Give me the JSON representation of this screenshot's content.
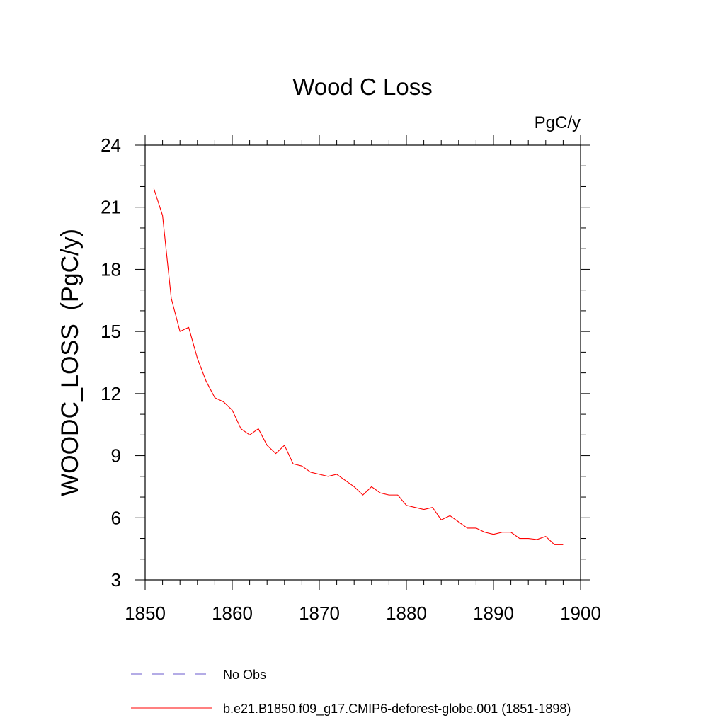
{
  "chart_data": {
    "type": "line",
    "title": "Wood C Loss",
    "units_label": "PgC/y",
    "ylabel": "WOODC_LOSS  (PgC/y)",
    "xlabel": "",
    "xlim": [
      1850,
      1900
    ],
    "ylim": [
      3,
      24
    ],
    "x_ticks": [
      1850,
      1860,
      1870,
      1880,
      1890,
      1900
    ],
    "y_ticks": [
      3,
      6,
      9,
      12,
      15,
      18,
      21,
      24
    ],
    "x_minor_step": 2,
    "y_minor_step": 1,
    "series": [
      {
        "name": "b.e21.B1850.f09_g17.CMIP6-deforest-globe.001 (1851-1898)",
        "color": "#ff0000",
        "dash": "solid",
        "x": [
          1851,
          1852,
          1853,
          1854,
          1855,
          1856,
          1857,
          1858,
          1859,
          1860,
          1861,
          1862,
          1863,
          1864,
          1865,
          1866,
          1867,
          1868,
          1869,
          1870,
          1871,
          1872,
          1873,
          1874,
          1875,
          1876,
          1877,
          1878,
          1879,
          1880,
          1881,
          1882,
          1883,
          1884,
          1885,
          1886,
          1887,
          1888,
          1889,
          1890,
          1891,
          1892,
          1893,
          1894,
          1895,
          1896,
          1897,
          1898
        ],
        "values": [
          21.9,
          20.6,
          16.6,
          15.0,
          15.2,
          13.7,
          12.6,
          11.8,
          11.6,
          11.2,
          10.3,
          10.0,
          10.3,
          9.5,
          9.1,
          9.5,
          8.6,
          8.5,
          8.2,
          8.1,
          8.0,
          8.1,
          7.8,
          7.5,
          7.1,
          7.5,
          7.2,
          7.1,
          7.1,
          6.6,
          6.5,
          6.4,
          6.5,
          5.9,
          6.1,
          5.8,
          5.5,
          5.5,
          5.3,
          5.2,
          5.3,
          5.3,
          5.0,
          5.0,
          4.95,
          5.1,
          4.7,
          4.7
        ]
      }
    ],
    "legend": [
      {
        "label": "No Obs",
        "color": "#6a5acd",
        "dash": "dashed"
      },
      {
        "label": "b.e21.B1850.f09_g17.CMIP6-deforest-globe.001 (1851-1898)",
        "color": "#ff0000",
        "dash": "solid"
      }
    ],
    "legend_position": "bottom"
  }
}
